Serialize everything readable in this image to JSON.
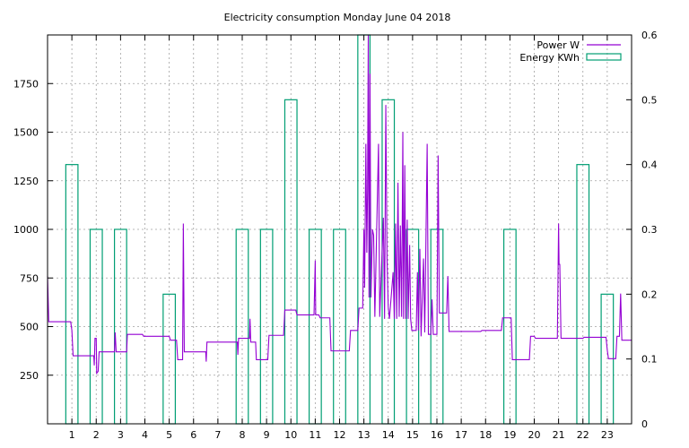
{
  "chart_data": {
    "type": "line",
    "title": "Electricity consumption Monday June 04 2018",
    "xlabel": "",
    "ylabel": "",
    "y2label": "",
    "xlim": [
      0,
      24
    ],
    "ylim": [
      0,
      2000
    ],
    "y2lim": [
      0,
      0.6
    ],
    "grid": true,
    "legend_position": "top-right",
    "x_ticks": [
      1,
      2,
      3,
      4,
      5,
      6,
      7,
      8,
      9,
      10,
      11,
      12,
      13,
      14,
      15,
      16,
      17,
      18,
      19,
      20,
      21,
      22,
      23
    ],
    "y_ticks": [
      250,
      500,
      750,
      1000,
      1250,
      1500,
      1750
    ],
    "y2_ticks": [
      "0",
      "0.1",
      "0.2",
      "0.3",
      "0.4",
      "0.5",
      "0.6"
    ],
    "series": [
      {
        "name": "Power W",
        "color": "#9400d3",
        "points": [
          [
            0,
            760
          ],
          [
            0.05,
            525
          ],
          [
            0.95,
            525
          ],
          [
            1.0,
            480
          ],
          [
            1.05,
            350
          ],
          [
            1.9,
            350
          ],
          [
            1.92,
            300
          ],
          [
            1.95,
            440
          ],
          [
            2.0,
            440
          ],
          [
            2.02,
            260
          ],
          [
            2.08,
            270
          ],
          [
            2.12,
            370
          ],
          [
            2.75,
            370
          ],
          [
            2.78,
            470
          ],
          [
            2.82,
            370
          ],
          [
            3.25,
            370
          ],
          [
            3.28,
            460
          ],
          [
            3.9,
            460
          ],
          [
            3.95,
            450
          ],
          [
            5.0,
            450
          ],
          [
            5.05,
            430
          ],
          [
            5.3,
            430
          ],
          [
            5.35,
            330
          ],
          [
            5.55,
            330
          ],
          [
            5.58,
            1030
          ],
          [
            5.62,
            370
          ],
          [
            6.5,
            370
          ],
          [
            6.52,
            320
          ],
          [
            6.55,
            420
          ],
          [
            7.8,
            420
          ],
          [
            7.82,
            355
          ],
          [
            7.85,
            440
          ],
          [
            8.3,
            440
          ],
          [
            8.32,
            540
          ],
          [
            8.35,
            420
          ],
          [
            8.55,
            420
          ],
          [
            8.58,
            330
          ],
          [
            9.05,
            330
          ],
          [
            9.1,
            455
          ],
          [
            9.7,
            455
          ],
          [
            9.75,
            585
          ],
          [
            10.2,
            585
          ],
          [
            10.25,
            560
          ],
          [
            10.95,
            560
          ],
          [
            11.0,
            840
          ],
          [
            11.02,
            560
          ],
          [
            11.15,
            560
          ],
          [
            11.2,
            545
          ],
          [
            11.6,
            545
          ],
          [
            11.65,
            375
          ],
          [
            12.4,
            375
          ],
          [
            12.45,
            480
          ],
          [
            12.75,
            480
          ],
          [
            12.8,
            595
          ],
          [
            12.95,
            595
          ],
          [
            13.0,
            1000
          ],
          [
            13.03,
            700
          ],
          [
            13.08,
            1440
          ],
          [
            13.12,
            880
          ],
          [
            13.15,
            1200
          ],
          [
            13.18,
            2000
          ],
          [
            13.21,
            650
          ],
          [
            13.25,
            1800
          ],
          [
            13.29,
            650
          ],
          [
            13.35,
            1000
          ],
          [
            13.4,
            970
          ],
          [
            13.45,
            550
          ],
          [
            13.6,
            1440
          ],
          [
            13.65,
            550
          ],
          [
            13.8,
            1060
          ],
          [
            13.85,
            540
          ],
          [
            13.9,
            1640
          ],
          [
            13.95,
            850
          ],
          [
            14.0,
            600
          ],
          [
            14.05,
            540
          ],
          [
            14.2,
            780
          ],
          [
            14.25,
            540
          ],
          [
            14.3,
            1030
          ],
          [
            14.35,
            540
          ],
          [
            14.4,
            1240
          ],
          [
            14.45,
            550
          ],
          [
            14.5,
            1020
          ],
          [
            14.55,
            550
          ],
          [
            14.6,
            1500
          ],
          [
            14.63,
            540
          ],
          [
            14.68,
            1330
          ],
          [
            14.72,
            540
          ],
          [
            14.78,
            1050
          ],
          [
            14.82,
            540
          ],
          [
            14.88,
            920
          ],
          [
            14.92,
            540
          ],
          [
            14.97,
            480
          ],
          [
            15.15,
            480
          ],
          [
            15.2,
            780
          ],
          [
            15.24,
            480
          ],
          [
            15.3,
            900
          ],
          [
            15.35,
            450
          ],
          [
            15.45,
            850
          ],
          [
            15.5,
            470
          ],
          [
            15.6,
            1440
          ],
          [
            15.65,
            460
          ],
          [
            15.75,
            460
          ],
          [
            15.8,
            640
          ],
          [
            15.85,
            460
          ],
          [
            16.0,
            460
          ],
          [
            16.05,
            1380
          ],
          [
            16.1,
            570
          ],
          [
            16.4,
            570
          ],
          [
            16.45,
            760
          ],
          [
            16.5,
            475
          ],
          [
            17.8,
            475
          ],
          [
            17.85,
            480
          ],
          [
            18.65,
            480
          ],
          [
            18.7,
            545
          ],
          [
            19.05,
            545
          ],
          [
            19.1,
            330
          ],
          [
            19.8,
            330
          ],
          [
            19.85,
            450
          ],
          [
            20.0,
            450
          ],
          [
            20.05,
            440
          ],
          [
            20.95,
            440
          ],
          [
            21.0,
            1030
          ],
          [
            21.02,
            820
          ],
          [
            21.05,
            820
          ],
          [
            21.1,
            440
          ],
          [
            22.0,
            440
          ],
          [
            22.05,
            445
          ],
          [
            22.95,
            445
          ],
          [
            23.0,
            380
          ],
          [
            23.05,
            335
          ],
          [
            23.35,
            335
          ],
          [
            23.4,
            450
          ],
          [
            23.5,
            450
          ],
          [
            23.55,
            670
          ],
          [
            23.6,
            430
          ],
          [
            24.0,
            430
          ]
        ]
      },
      {
        "name": "Energy KWh",
        "color": "#009e73",
        "bar_width": 0.5,
        "bars": [
          [
            1,
            0.4
          ],
          [
            2,
            0.3
          ],
          [
            3,
            0.3
          ],
          [
            5,
            0.2
          ],
          [
            8,
            0.3
          ],
          [
            9,
            0.3
          ],
          [
            10,
            0.5
          ],
          [
            11,
            0.3
          ],
          [
            12,
            0.3
          ],
          [
            13,
            0.6
          ],
          [
            14,
            0.5
          ],
          [
            15,
            0.3
          ],
          [
            16,
            0.3
          ],
          [
            19,
            0.3
          ],
          [
            22,
            0.4
          ],
          [
            23,
            0.2
          ]
        ]
      }
    ]
  }
}
